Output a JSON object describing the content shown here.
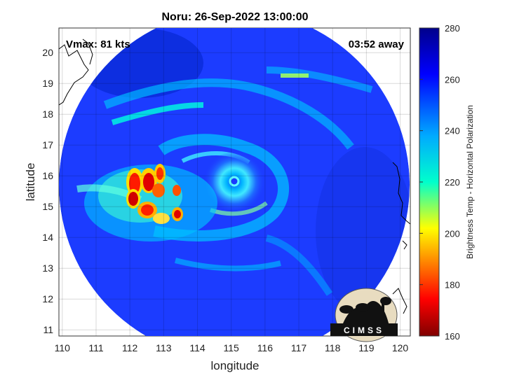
{
  "title": "Noru: 26-Sep-2022 13:00:00",
  "annotations": {
    "vmax": "Vmax: 81 kts",
    "time_away": "03:52 away"
  },
  "axes": {
    "xlabel": "longitude",
    "ylabel": "latitude",
    "xlim": [
      109.9,
      120.3
    ],
    "ylim": [
      10.8,
      20.8
    ],
    "xticks": [
      "110",
      "111",
      "112",
      "113",
      "114",
      "115",
      "116",
      "117",
      "118",
      "119",
      "120"
    ],
    "yticks": [
      "11",
      "12",
      "13",
      "14",
      "15",
      "16",
      "17",
      "18",
      "19",
      "20"
    ],
    "grid": true
  },
  "colorbar": {
    "label": "Brightness Temp - Horizontal Polarization",
    "range": [
      160,
      280
    ],
    "ticks": [
      "280",
      "260",
      "240",
      "220",
      "200",
      "180",
      "160"
    ],
    "colormap": "jet"
  },
  "storm": {
    "name": "Noru",
    "center_lon": 115.2,
    "center_lat": 15.8
  },
  "swath": {
    "center_lon": 115.0,
    "center_lat": 15.6,
    "radius_deg": 5.3
  },
  "logo": {
    "text": "CIMSS"
  },
  "colors": {
    "cold_red": "#b00000",
    "background_blue": "#1c3cff",
    "deep_blue": "#0a1c9a"
  }
}
